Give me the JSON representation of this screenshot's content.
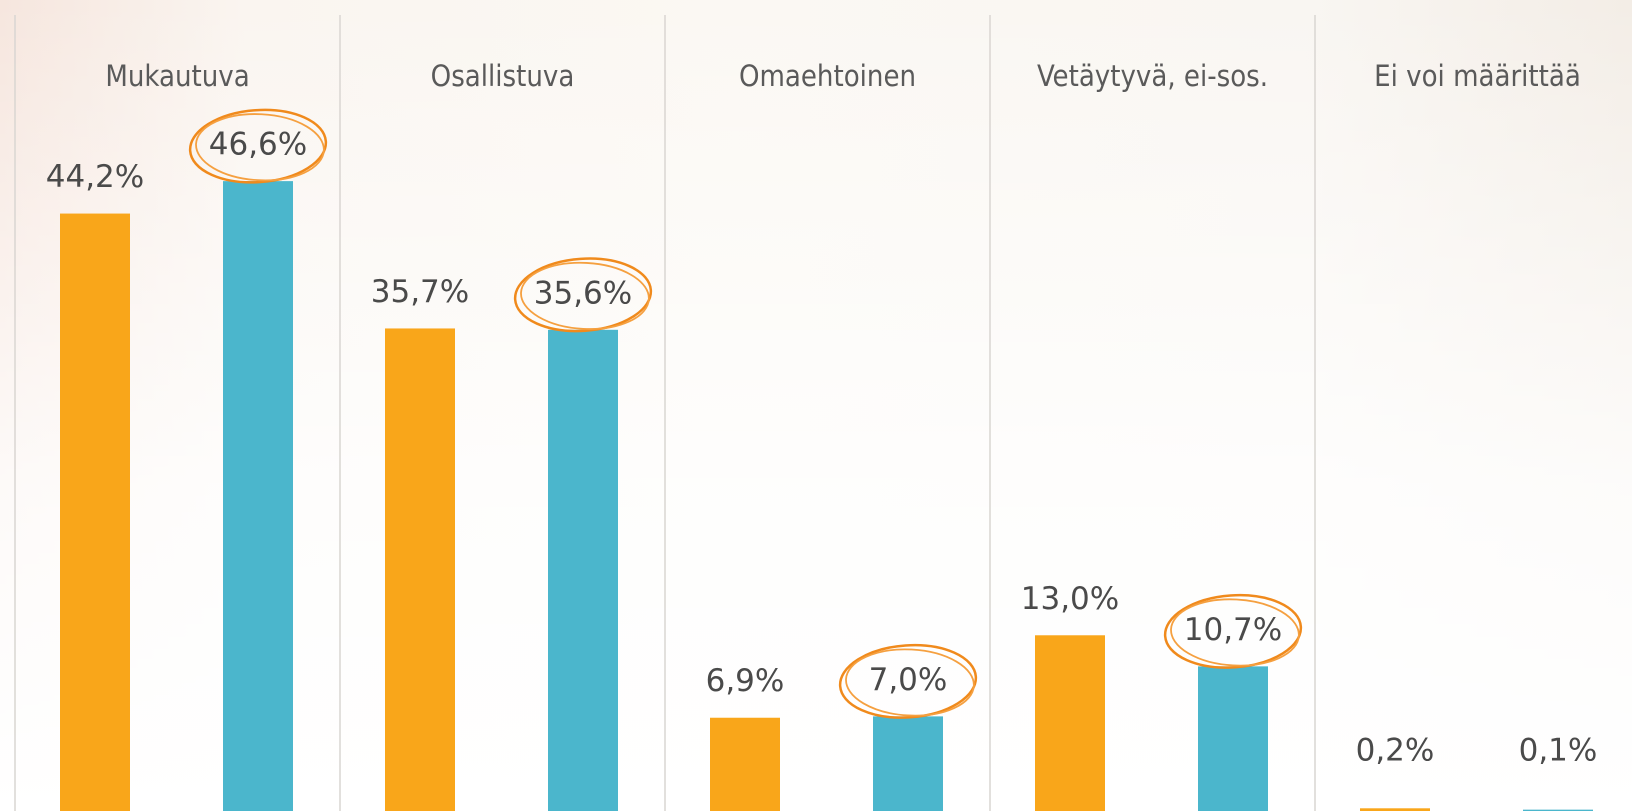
{
  "chart_data": {
    "type": "bar",
    "categories": [
      "Mukautuva",
      "Osallistuva",
      "Omaehtoinen",
      "Vetäytyvä, ei-sos.",
      "Ei voi määrittää"
    ],
    "series": [
      {
        "color": "#f9a61a",
        "values": [
          44.2,
          35.7,
          6.9,
          13.0,
          0.2
        ],
        "value_labels": [
          "44,2%",
          "35,7%",
          "6,9%",
          "13,0%",
          "0,2%"
        ]
      },
      {
        "color": "#4bb6cc",
        "values": [
          46.6,
          35.6,
          7.0,
          10.7,
          0.1
        ],
        "value_labels": [
          "46,6%",
          "35,6%",
          "7,0%",
          "10,7%",
          "0,1%"
        ]
      }
    ],
    "ylim": [
      0,
      60
    ]
  }
}
